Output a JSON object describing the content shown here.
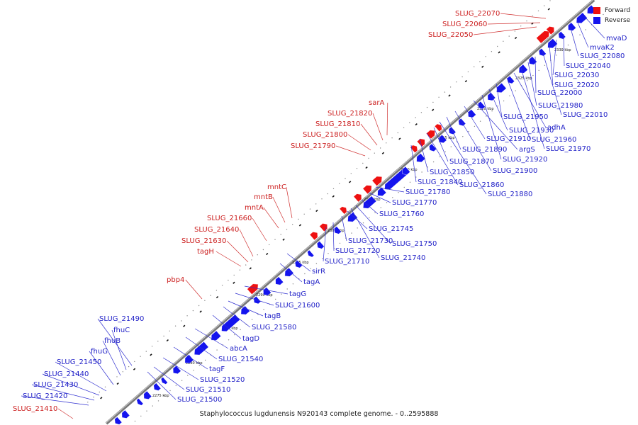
{
  "caption": "Staphylococcus lugdunensis N920143 complete genome. - 0..2595888",
  "legend": {
    "forward_label": "Forward",
    "reverse_label": "Reverse",
    "forward_color": "#ee1111",
    "reverse_color": "#1414ee"
  },
  "kbp_ticks": [
    "2275 kbp",
    "2280 kbp",
    "2285 kbp",
    "2290 kbp",
    "2295 kbp",
    "2300 kbp",
    "2305 kbp",
    "2310 kbp",
    "2315 kbp",
    "2320 kbp",
    "2325 kbp",
    "2330 kbp"
  ],
  "forward_genes": [
    "SLUG_21410",
    "pbp4",
    "tagH",
    "SLUG_21630",
    "SLUG_21640",
    "SLUG_21660",
    "mntA",
    "mntB",
    "mntC",
    "SLUG_21790",
    "SLUG_21800",
    "SLUG_21810",
    "SLUG_21820",
    "sarA",
    "SLUG_22050",
    "SLUG_22060",
    "SLUG_22070"
  ],
  "reverse_genes": [
    "SLUG_21420",
    "SLUG_21430",
    "SLUG_21440",
    "SLUG_21450",
    "fhuG",
    "fhuB",
    "fhuC",
    "SLUG_21490",
    "SLUG_21500",
    "SLUG_21510",
    "SLUG_21520",
    "tagF",
    "SLUG_21540",
    "abcA",
    "tagD",
    "SLUG_21580",
    "tagB",
    "SLUG_21600",
    "tagG",
    "tagA",
    "sirR",
    "SLUG_21710",
    "SLUG_21720",
    "SLUG_21730",
    "SLUG_21740",
    "SLUG_21745",
    "SLUG_21750",
    "SLUG_21760",
    "SLUG_21770",
    "SLUG_21780",
    "SLUG_21840",
    "SLUG_21850",
    "SLUG_21860",
    "SLUG_21870",
    "SLUG_21880",
    "SLUG_21890",
    "SLUG_21900",
    "SLUG_21910",
    "argS",
    "SLUG_21920",
    "SLUG_21930",
    "SLUG_21950",
    "SLUG_21960",
    "adhA",
    "SLUG_21970",
    "SLUG_21980",
    "SLUG_22000",
    "SLUG_22010",
    "SLUG_22020",
    "SLUG_22030",
    "SLUG_22040",
    "SLUG_22080",
    "mvaK2",
    "mvaD"
  ]
}
